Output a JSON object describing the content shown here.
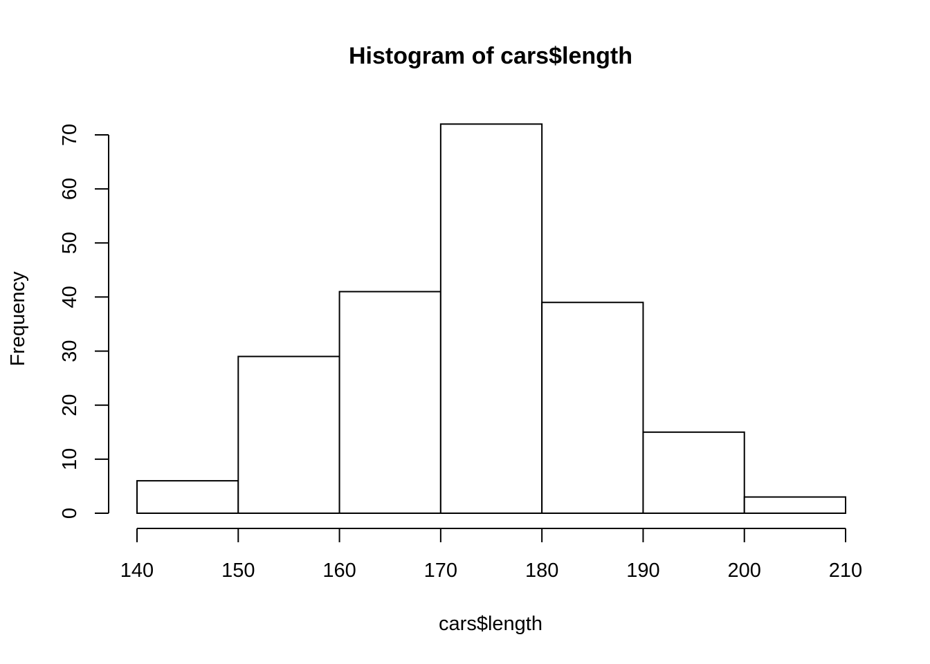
{
  "chart_data": {
    "type": "bar",
    "title": "Histogram of cars$length",
    "xlabel": "cars$length",
    "ylabel": "Frequency",
    "bins": [
      {
        "from": 140,
        "to": 150,
        "count": 6
      },
      {
        "from": 150,
        "to": 160,
        "count": 29
      },
      {
        "from": 160,
        "to": 170,
        "count": 41
      },
      {
        "from": 170,
        "to": 180,
        "count": 72
      },
      {
        "from": 180,
        "to": 190,
        "count": 39
      },
      {
        "from": 190,
        "to": 200,
        "count": 15
      },
      {
        "from": 200,
        "to": 210,
        "count": 3
      }
    ],
    "xlim": [
      140,
      210
    ],
    "ylim": [
      0,
      70
    ],
    "x_ticks": [
      "140",
      "150",
      "160",
      "170",
      "180",
      "190",
      "200",
      "210"
    ],
    "y_ticks": [
      "0",
      "10",
      "20",
      "30",
      "40",
      "50",
      "60",
      "70"
    ],
    "grid": false,
    "legend": "none"
  }
}
